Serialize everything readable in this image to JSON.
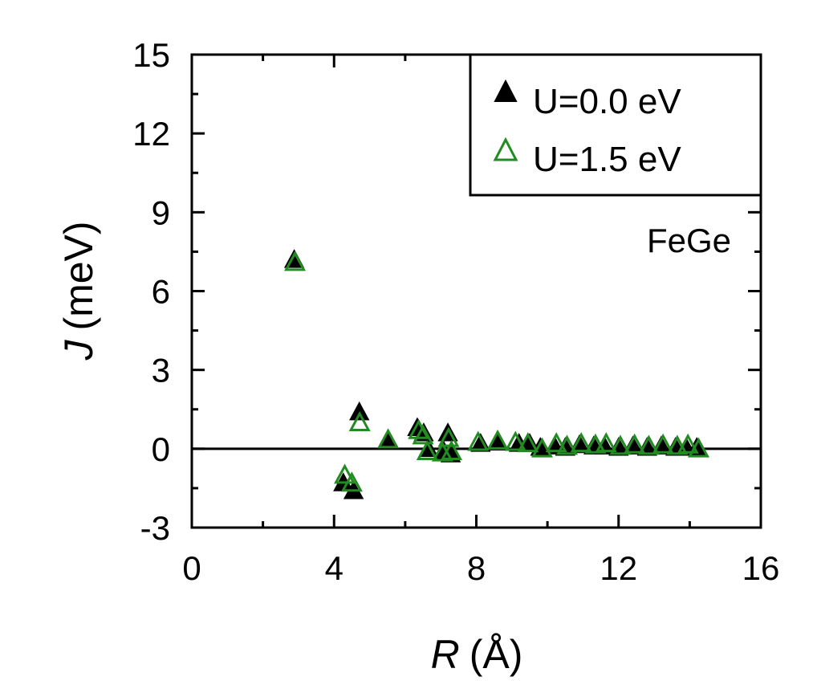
{
  "chart_data": {
    "type": "scatter",
    "title": "",
    "xlabel": {
      "symbol": "R",
      "unit": "(Å)"
    },
    "ylabel": {
      "symbol": "J",
      "unit": "(meV)"
    },
    "xlim": [
      0,
      16
    ],
    "ylim": [
      -3,
      15
    ],
    "xticks": [
      0,
      4,
      8,
      12,
      16
    ],
    "yticks": [
      -3,
      0,
      3,
      6,
      9,
      12,
      15
    ],
    "xtick_labels": [
      "0",
      "4",
      "8",
      "12",
      "16"
    ],
    "ytick_labels": [
      "-3",
      "0",
      "3",
      "6",
      "9",
      "12",
      "15"
    ],
    "reference_line_y": 0,
    "annotation": "FeGe",
    "legend_position": "top-right",
    "colors": {
      "filled_series": "#000000",
      "open_series": "#228b22",
      "axes": "#000000"
    },
    "series": [
      {
        "name": "U=0.0 eV",
        "marker": "filled-triangle",
        "points": [
          [
            2.88,
            7.2
          ],
          [
            4.26,
            -1.3
          ],
          [
            4.55,
            -1.6
          ],
          [
            4.71,
            1.4
          ],
          [
            5.5,
            0.3
          ],
          [
            6.34,
            0.8
          ],
          [
            6.52,
            0.6
          ],
          [
            6.65,
            0.0
          ],
          [
            7.09,
            -0.1
          ],
          [
            7.2,
            0.6
          ],
          [
            7.28,
            -0.2
          ],
          [
            8.12,
            0.2
          ],
          [
            8.63,
            0.25
          ],
          [
            9.2,
            0.2
          ],
          [
            9.5,
            0.2
          ],
          [
            9.8,
            0.05
          ],
          [
            10.2,
            0.1
          ],
          [
            10.5,
            0.05
          ],
          [
            10.9,
            0.15
          ],
          [
            11.3,
            0.1
          ],
          [
            11.6,
            0.1
          ],
          [
            12.0,
            0.05
          ],
          [
            12.4,
            0.1
          ],
          [
            12.8,
            0.05
          ],
          [
            13.2,
            0.1
          ],
          [
            13.6,
            0.05
          ],
          [
            13.9,
            0.05
          ],
          [
            14.2,
            0.05
          ]
        ]
      },
      {
        "name": "U=1.5 eV",
        "marker": "open-triangle",
        "points": [
          [
            2.9,
            7.1
          ],
          [
            4.3,
            -1.0
          ],
          [
            4.5,
            -1.3
          ],
          [
            4.72,
            1.0
          ],
          [
            5.52,
            0.35
          ],
          [
            6.38,
            0.7
          ],
          [
            6.5,
            0.5
          ],
          [
            6.62,
            -0.1
          ],
          [
            7.05,
            -0.15
          ],
          [
            7.22,
            0.4
          ],
          [
            7.3,
            -0.1
          ],
          [
            8.05,
            0.25
          ],
          [
            8.6,
            0.3
          ],
          [
            9.1,
            0.25
          ],
          [
            9.45,
            0.2
          ],
          [
            9.85,
            0.0
          ],
          [
            10.25,
            0.2
          ],
          [
            10.55,
            0.1
          ],
          [
            10.95,
            0.2
          ],
          [
            11.35,
            0.15
          ],
          [
            11.65,
            0.2
          ],
          [
            12.05,
            0.1
          ],
          [
            12.45,
            0.15
          ],
          [
            12.85,
            0.1
          ],
          [
            13.25,
            0.15
          ],
          [
            13.65,
            0.1
          ],
          [
            13.95,
            0.15
          ],
          [
            14.25,
            0.0
          ]
        ]
      }
    ]
  }
}
